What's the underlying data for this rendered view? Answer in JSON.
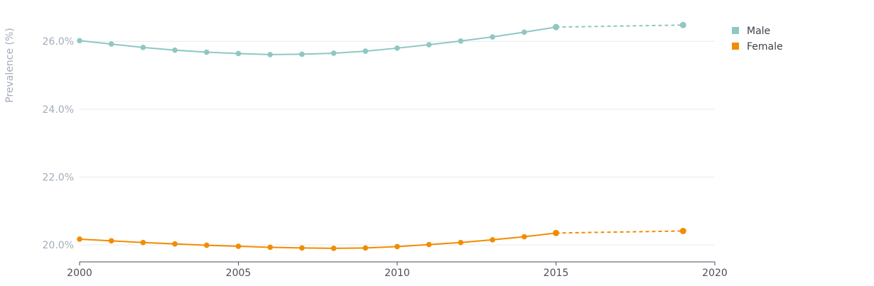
{
  "chart_data": {
    "type": "line",
    "ylabel": "Prevalence (%)",
    "xlim": [
      2000,
      2020
    ],
    "ylim": [
      19.5,
      26.8
    ],
    "x_ticks": [
      2000,
      2005,
      2010,
      2015,
      2020
    ],
    "x_tick_labels": [
      "2000",
      "2005",
      "2010",
      "2015",
      "2020"
    ],
    "y_ticks": [
      20,
      22,
      24,
      26
    ],
    "y_tick_labels": [
      "20.0%",
      "22.0%",
      "24.0%",
      "26.0%"
    ],
    "grid": true,
    "legend_position": "top-right",
    "series": [
      {
        "name": "Male",
        "color": "#8fc7c4",
        "points": [
          [
            2000,
            26.02
          ],
          [
            2001,
            25.92
          ],
          [
            2002,
            25.82
          ],
          [
            2003,
            25.74
          ],
          [
            2004,
            25.68
          ],
          [
            2005,
            25.64
          ],
          [
            2006,
            25.61
          ],
          [
            2007,
            25.62
          ],
          [
            2008,
            25.65
          ],
          [
            2009,
            25.71
          ],
          [
            2010,
            25.8
          ],
          [
            2011,
            25.9
          ],
          [
            2012,
            26.01
          ],
          [
            2013,
            26.13
          ],
          [
            2014,
            26.27
          ],
          [
            2015,
            26.42
          ]
        ],
        "projected": [
          [
            2015,
            26.42
          ],
          [
            2019,
            26.48
          ]
        ]
      },
      {
        "name": "Female",
        "color": "#f28c00",
        "points": [
          [
            2000,
            20.17
          ],
          [
            2001,
            20.12
          ],
          [
            2002,
            20.07
          ],
          [
            2003,
            20.03
          ],
          [
            2004,
            19.99
          ],
          [
            2005,
            19.96
          ],
          [
            2006,
            19.93
          ],
          [
            2007,
            19.91
          ],
          [
            2008,
            19.9
          ],
          [
            2009,
            19.91
          ],
          [
            2010,
            19.95
          ],
          [
            2011,
            20.01
          ],
          [
            2012,
            20.07
          ],
          [
            2013,
            20.15
          ],
          [
            2014,
            20.24
          ],
          [
            2015,
            20.35
          ]
        ],
        "projected": [
          [
            2015,
            20.35
          ],
          [
            2019,
            20.41
          ]
        ]
      }
    ]
  }
}
